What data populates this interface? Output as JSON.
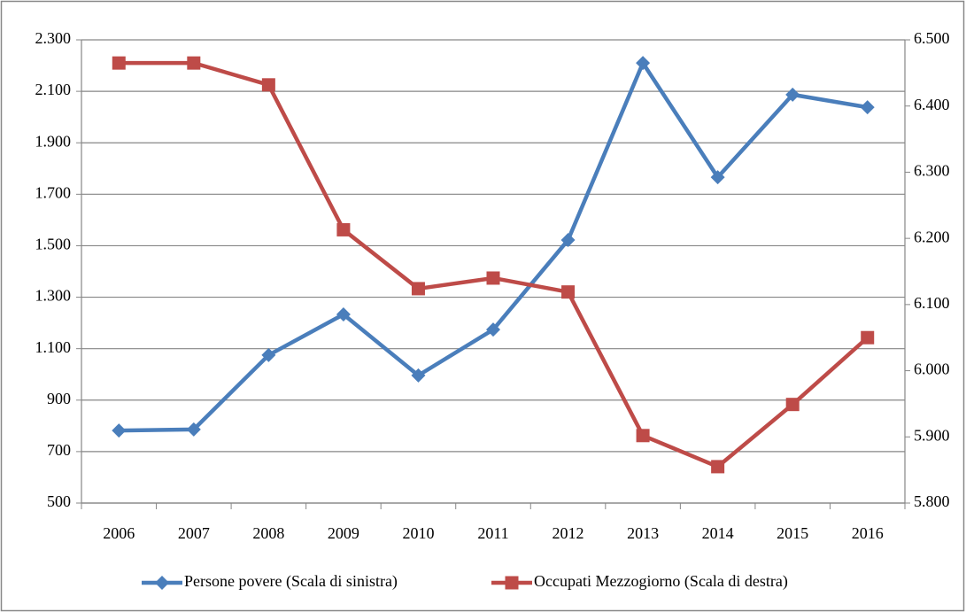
{
  "chart_data": {
    "type": "line",
    "categories": [
      "2006",
      "2007",
      "2008",
      "2009",
      "2010",
      "2011",
      "2012",
      "2013",
      "2014",
      "2015",
      "2016"
    ],
    "series": [
      {
        "name": "Persone povere (Scala di sinistra)",
        "color": "#4a7ebb",
        "marker": "diamond",
        "values": [
          782,
          786,
          1075,
          1233,
          996,
          1174,
          1522,
          2210,
          1766,
          2087,
          2038
        ]
      },
      {
        "name": "Occupati Mezzogiorno (Scala di destra)",
        "color": "#be4b48",
        "marker": "square",
        "axis": "y2",
        "values": [
          6465,
          6465,
          6432,
          6213,
          6124,
          6140,
          6119,
          5902,
          5855,
          5949,
          6050
        ]
      }
    ],
    "ylim": [
      500,
      2300
    ],
    "yticks": [
      {
        "value": 500,
        "label": "500"
      },
      {
        "value": 700,
        "label": "700"
      },
      {
        "value": 900,
        "label": "900"
      },
      {
        "value": 1100,
        "label": "1.100"
      },
      {
        "value": 1300,
        "label": "1.300"
      },
      {
        "value": 1500,
        "label": "1.500"
      },
      {
        "value": 1700,
        "label": "1.700"
      },
      {
        "value": 1900,
        "label": "1.900"
      },
      {
        "value": 2100,
        "label": "2.100"
      },
      {
        "value": 2300,
        "label": "2.300"
      }
    ],
    "y2lim": [
      5800,
      6500
    ],
    "y2ticks": [
      {
        "value": 5800,
        "label": "5.800"
      },
      {
        "value": 5900,
        "label": "5.900"
      },
      {
        "value": 6000,
        "label": "6.000"
      },
      {
        "value": 6100,
        "label": "6.100"
      },
      {
        "value": 6200,
        "label": "6.200"
      },
      {
        "value": 6300,
        "label": "6.300"
      },
      {
        "value": 6400,
        "label": "6.400"
      },
      {
        "value": 6500,
        "label": "6.500"
      }
    ],
    "grid": true,
    "legend": "bottom"
  }
}
